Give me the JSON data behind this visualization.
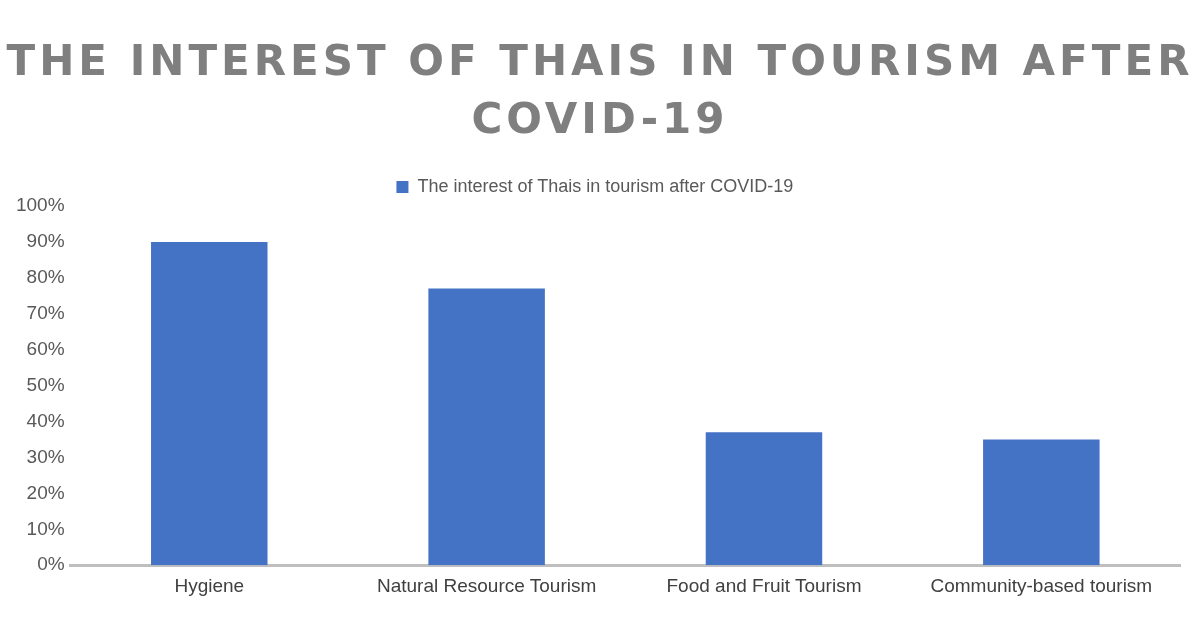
{
  "chart_data": {
    "type": "bar",
    "title": "THE INTEREST OF THAIS IN TOURISM AFTER COVID-19",
    "categories": [
      "Hygiene",
      "Natural Resource Tourism",
      "Food and Fruit Tourism",
      "Community-based tourism"
    ],
    "series": [
      {
        "name": "The interest of Thais in tourism after COVID-19",
        "color": "#4472c4",
        "values": [
          90,
          77,
          37,
          35
        ]
      }
    ],
    "ylim": [
      0,
      100
    ],
    "yticks": [
      {
        "value": 0,
        "label": "0%"
      },
      {
        "value": 10,
        "label": "10%"
      },
      {
        "value": 20,
        "label": "20%"
      },
      {
        "value": 30,
        "label": "30%"
      },
      {
        "value": 40,
        "label": "40%"
      },
      {
        "value": 50,
        "label": "50%"
      },
      {
        "value": 60,
        "label": "60%"
      },
      {
        "value": 70,
        "label": "70%"
      },
      {
        "value": 80,
        "label": "80%"
      },
      {
        "value": 90,
        "label": "90%"
      },
      {
        "value": 100,
        "label": "100%"
      }
    ],
    "grid": false,
    "legend": "top"
  }
}
